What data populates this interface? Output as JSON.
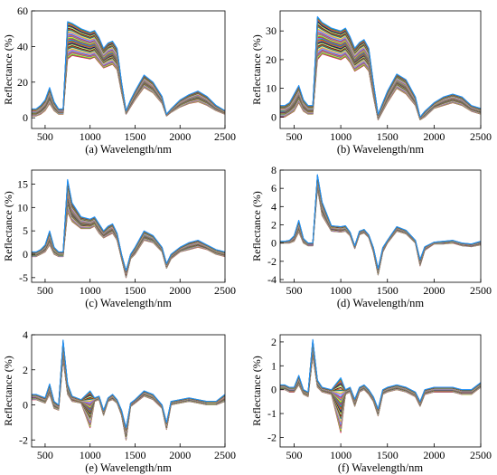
{
  "figure": {
    "xlabel": "Wavelength/nm",
    "ylabel": "Reflectance (%)"
  },
  "chart_data": [
    {
      "type": "line",
      "caption": "(a) Wavelength/nm",
      "ylabel": "Reflectance (%)",
      "xlim": [
        350,
        2500
      ],
      "ylim": [
        -6,
        60
      ],
      "xticks": [
        500,
        1000,
        1500,
        2000,
        2500
      ],
      "yticks": [
        0,
        20,
        40,
        60
      ],
      "series_count": 40,
      "x": [
        350,
        400,
        450,
        500,
        550,
        600,
        650,
        700,
        750,
        800,
        900,
        1000,
        1050,
        1100,
        1150,
        1200,
        1250,
        1300,
        1350,
        1400,
        1450,
        1500,
        1600,
        1700,
        1800,
        1850,
        1900,
        2000,
        2100,
        2200,
        2300,
        2400,
        2500
      ],
      "series_low": [
        1,
        1,
        2,
        4,
        8,
        4,
        2,
        2,
        33,
        35,
        34,
        33,
        34,
        31,
        28,
        29,
        30,
        27,
        14,
        2,
        6,
        10,
        17,
        14,
        8,
        1,
        3,
        6,
        8,
        9,
        7,
        4,
        2
      ],
      "series_high": [
        5,
        5,
        7,
        10,
        17,
        9,
        5,
        5,
        54,
        53,
        50,
        48,
        49,
        45,
        39,
        42,
        43,
        39,
        20,
        4,
        10,
        15,
        24,
        20,
        12,
        2,
        5,
        10,
        13,
        15,
        12,
        7,
        4
      ]
    },
    {
      "type": "line",
      "caption": "(b) Wavelength/nm",
      "ylabel": "Reflectance (%)",
      "xlim": [
        350,
        2500
      ],
      "ylim": [
        -4,
        37
      ],
      "xticks": [
        500,
        1000,
        1500,
        2000,
        2500
      ],
      "yticks": [
        0,
        10,
        20,
        30
      ],
      "series_count": 40,
      "x": [
        350,
        400,
        450,
        500,
        550,
        600,
        650,
        700,
        750,
        800,
        900,
        1000,
        1050,
        1100,
        1150,
        1200,
        1250,
        1300,
        1350,
        1400,
        1450,
        1500,
        1600,
        1700,
        1800,
        1850,
        1900,
        2000,
        2100,
        2200,
        2300,
        2400,
        2500
      ],
      "series_low": [
        0,
        0,
        1,
        2,
        5,
        2,
        1,
        1,
        20,
        22,
        21,
        20,
        21,
        19,
        16,
        17,
        18,
        16,
        7,
        -1,
        2,
        5,
        10,
        8,
        4,
        -1,
        0,
        3,
        4,
        5,
        4,
        2,
        1
      ],
      "series_high": [
        4,
        4,
        5,
        8,
        11,
        6,
        4,
        4,
        35,
        33,
        31,
        30,
        31,
        28,
        24,
        26,
        27,
        24,
        12,
        1,
        5,
        9,
        15,
        13,
        7,
        0,
        2,
        5,
        7,
        8,
        7,
        4,
        3
      ]
    },
    {
      "type": "line",
      "caption": "(c) Wavelength/nm",
      "ylabel": "Reflectance (%)",
      "xlim": [
        350,
        2500
      ],
      "ylim": [
        -6,
        18
      ],
      "xticks": [
        500,
        1000,
        1500,
        2000,
        2500
      ],
      "yticks": [
        -5,
        0,
        5,
        10,
        15
      ],
      "series_count": 40,
      "x": [
        350,
        400,
        450,
        500,
        550,
        600,
        650,
        700,
        750,
        800,
        900,
        1000,
        1050,
        1100,
        1150,
        1200,
        1250,
        1300,
        1350,
        1400,
        1450,
        1500,
        1600,
        1700,
        1800,
        1850,
        1900,
        2000,
        2100,
        2200,
        2300,
        2400,
        2500
      ],
      "series_low": [
        -0.5,
        -0.5,
        0,
        0.5,
        2,
        0,
        -0.5,
        -0.5,
        9,
        7,
        5.5,
        5.5,
        6,
        4.5,
        3.5,
        4,
        4.5,
        3,
        -1,
        -5,
        -1,
        0,
        3,
        2.5,
        0.5,
        -3,
        -1,
        0.5,
        1,
        1.5,
        1,
        0,
        -0.5
      ],
      "series_high": [
        0.5,
        0.5,
        1,
        2,
        5,
        1.5,
        0.5,
        0.5,
        16,
        11,
        8,
        7.5,
        8,
        6.5,
        5,
        6,
        6.5,
        4.5,
        0,
        -3.5,
        0,
        1.5,
        5,
        4,
        1.5,
        -2,
        0,
        1.5,
        2.5,
        3,
        2,
        1,
        0.5
      ]
    },
    {
      "type": "line",
      "caption": "(d) Wavelength/nm",
      "ylabel": "Reflectance (%)",
      "xlim": [
        350,
        2500
      ],
      "ylim": [
        -4.3,
        8
      ],
      "xticks": [
        500,
        1000,
        1500,
        2000,
        2500
      ],
      "yticks": [
        -4,
        -2,
        0,
        2,
        4,
        6,
        8
      ],
      "series_count": 40,
      "x": [
        350,
        400,
        450,
        500,
        550,
        600,
        650,
        700,
        750,
        800,
        900,
        1000,
        1050,
        1100,
        1150,
        1200,
        1250,
        1300,
        1350,
        1400,
        1450,
        1500,
        1600,
        1700,
        1800,
        1850,
        1900,
        2000,
        2100,
        2200,
        2300,
        2400,
        2500
      ],
      "series_low": [
        0,
        0,
        0,
        0.2,
        1.2,
        0,
        -0.3,
        -0.3,
        6,
        3,
        1.3,
        1.2,
        1.3,
        0.8,
        -0.6,
        0.9,
        1.1,
        0.6,
        -1,
        -3.5,
        -1,
        0,
        1.3,
        1,
        0,
        -2.5,
        -0.8,
        -0.1,
        -0.1,
        0,
        -0.3,
        -0.4,
        -0.2
      ],
      "series_high": [
        0.2,
        0.2,
        0.3,
        0.8,
        2.5,
        0.5,
        0,
        0,
        7.5,
        4.5,
        1.9,
        1.8,
        1.9,
        1.2,
        -0.3,
        1.3,
        1.5,
        0.9,
        -0.5,
        -2.8,
        -0.5,
        0.3,
        1.8,
        1.4,
        0.3,
        -1.8,
        -0.4,
        0.1,
        0.2,
        0.3,
        0,
        -0.1,
        0.2
      ]
    },
    {
      "type": "line",
      "caption": "(e) Wavelength/nm",
      "ylabel": "Reflectance (%)",
      "xlim": [
        350,
        2500
      ],
      "ylim": [
        -2.4,
        4
      ],
      "xticks": [
        500,
        1000,
        1500,
        2000,
        2500
      ],
      "yticks": [
        -2,
        0,
        2,
        4
      ],
      "series_count": 40,
      "x": [
        350,
        400,
        450,
        500,
        550,
        600,
        650,
        700,
        750,
        800,
        900,
        1000,
        1050,
        1100,
        1150,
        1200,
        1250,
        1300,
        1350,
        1400,
        1450,
        1500,
        1600,
        1700,
        1800,
        1850,
        1900,
        2000,
        2100,
        2200,
        2300,
        2400,
        2500
      ],
      "series_low": [
        0.3,
        0.3,
        0.2,
        0.1,
        0.6,
        -0.2,
        -0.3,
        2.6,
        0.6,
        0.2,
        0.1,
        -1.3,
        0.2,
        0.3,
        -0.6,
        0.2,
        0.3,
        0.1,
        -0.6,
        -2,
        -0.1,
        0.1,
        0.5,
        0.3,
        -0.2,
        -1.4,
        0,
        0.1,
        0.2,
        0.1,
        0,
        0,
        0.2
      ],
      "series_high": [
        0.6,
        0.6,
        0.5,
        0.4,
        1.2,
        0.2,
        0,
        3.7,
        1.2,
        0.5,
        0.3,
        0.8,
        0.4,
        0.5,
        -0.3,
        0.4,
        0.6,
        0.3,
        -0.3,
        -1.3,
        0.1,
        0.3,
        0.8,
        0.6,
        0,
        -1,
        0.2,
        0.3,
        0.4,
        0.3,
        0.2,
        0.2,
        0.6
      ]
    },
    {
      "type": "line",
      "caption": "(f) Wavelength/nm",
      "ylabel": "Reflectance (%)",
      "xlim": [
        350,
        2500
      ],
      "ylim": [
        -2.4,
        2.3
      ],
      "xticks": [
        500,
        1000,
        1500,
        2000,
        2500
      ],
      "yticks": [
        -2,
        -1,
        0,
        1,
        2
      ],
      "series_count": 40,
      "x": [
        350,
        400,
        450,
        500,
        550,
        600,
        650,
        700,
        750,
        800,
        900,
        1000,
        1050,
        1100,
        1150,
        1200,
        1250,
        1300,
        1350,
        1400,
        1450,
        1500,
        1600,
        1700,
        1800,
        1850,
        1900,
        2000,
        2100,
        2200,
        2300,
        2400,
        2500
      ],
      "series_low": [
        0,
        0,
        -0.1,
        -0.1,
        0.2,
        -0.2,
        -0.3,
        1.4,
        0.1,
        -0.1,
        -0.2,
        -1.8,
        -0.2,
        -0.1,
        -0.7,
        -0.1,
        0,
        -0.2,
        -0.5,
        -1.1,
        -0.2,
        -0.1,
        0,
        -0.1,
        -0.3,
        -0.7,
        -0.2,
        -0.1,
        -0.1,
        -0.1,
        -0.2,
        -0.2,
        0.1
      ],
      "series_high": [
        0.2,
        0.2,
        0.1,
        0.1,
        0.6,
        0,
        -0.1,
        2.1,
        0.4,
        0.1,
        0,
        0.5,
        0,
        0.1,
        -0.4,
        0.1,
        0.2,
        0,
        -0.3,
        -0.8,
        0,
        0.1,
        0.2,
        0.1,
        -0.1,
        -0.5,
        0,
        0.1,
        0.1,
        0.1,
        0,
        0,
        0.3
      ]
    }
  ]
}
